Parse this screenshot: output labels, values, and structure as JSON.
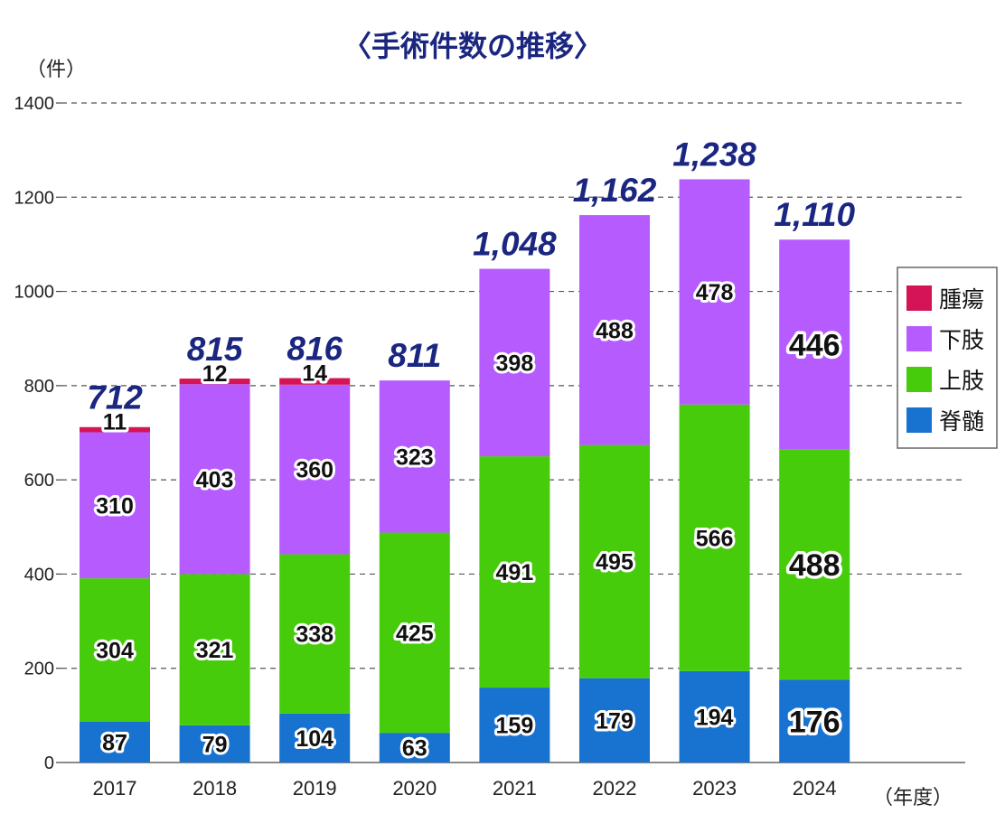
{
  "chart_data": {
    "type": "bar",
    "stacked": true,
    "title": "〈手術件数の推移〉",
    "ylabel": "（件）",
    "xlabel": "（年度）",
    "ylim": [
      0,
      1400
    ],
    "yticks": [
      0,
      200,
      400,
      600,
      800,
      1000,
      1200,
      1400
    ],
    "grid": true,
    "legend_position": "right",
    "categories": [
      "2017",
      "2018",
      "2019",
      "2020",
      "2021",
      "2022",
      "2023",
      "2024"
    ],
    "series": [
      {
        "name": "脊髄",
        "color": "#1872d0",
        "values": [
          87,
          79,
          104,
          63,
          159,
          179,
          194,
          176
        ],
        "labels": [
          "87",
          "79",
          "104",
          "63",
          "159",
          "179",
          "194",
          "176"
        ]
      },
      {
        "name": "上肢",
        "color": "#46cc0b",
        "values": [
          304,
          321,
          338,
          425,
          491,
          495,
          566,
          488
        ],
        "labels": [
          "304",
          "321",
          "338",
          "425",
          "491",
          "495",
          "566",
          "488"
        ]
      },
      {
        "name": "下肢",
        "color": "#b65cff",
        "values": [
          310,
          403,
          360,
          323,
          398,
          488,
          478,
          446
        ],
        "labels": [
          "310",
          "403",
          "360",
          "323",
          "398",
          "488",
          "478",
          "446"
        ]
      },
      {
        "name": "腫瘍",
        "color": "#d51458",
        "values": [
          11,
          12,
          14,
          0,
          0,
          0,
          0,
          0
        ],
        "labels": [
          "11",
          "12",
          "14",
          "",
          "",
          "",
          "",
          ""
        ]
      }
    ],
    "totals": [
      712,
      815,
      816,
      811,
      1048,
      1162,
      1238,
      1110
    ],
    "total_labels": [
      "712",
      "815",
      "816",
      "811",
      "1,048",
      "1,162",
      "1,238",
      "1,110"
    ]
  }
}
